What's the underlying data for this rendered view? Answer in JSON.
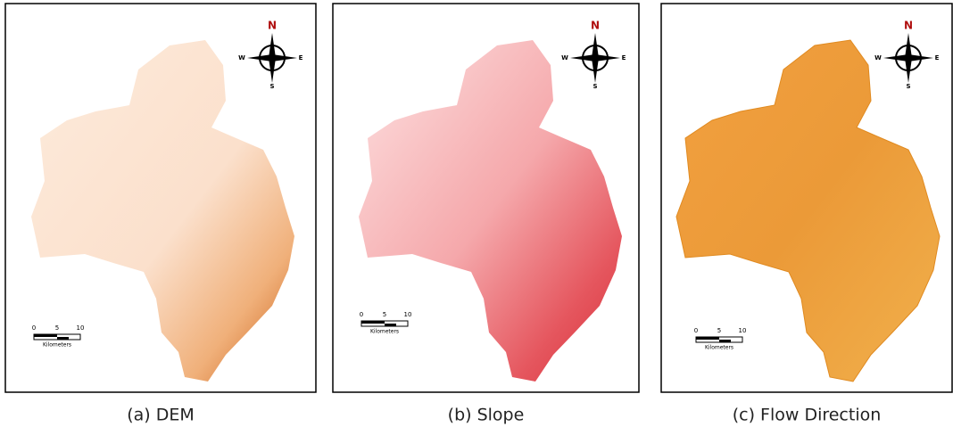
{
  "panels": [
    {
      "caption": "(a)  DEM",
      "compass": {
        "n": "N",
        "w": "W",
        "e": "E",
        "s": "S"
      },
      "scale": {
        "ticks": [
          "0",
          "5",
          "10"
        ],
        "unit": "Kilometers"
      }
    },
    {
      "caption": "(b)  Slope",
      "compass": {
        "n": "N",
        "w": "W",
        "e": "E",
        "s": "S"
      },
      "scale": {
        "ticks": [
          "0",
          "5",
          "10"
        ],
        "unit": "Kilometers"
      }
    },
    {
      "caption": "(c)  Flow Direction",
      "compass": {
        "n": "N",
        "w": "W",
        "e": "E",
        "s": "S"
      },
      "scale": {
        "ticks": [
          "0",
          "5",
          "10"
        ],
        "unit": "Kilometers"
      }
    }
  ]
}
